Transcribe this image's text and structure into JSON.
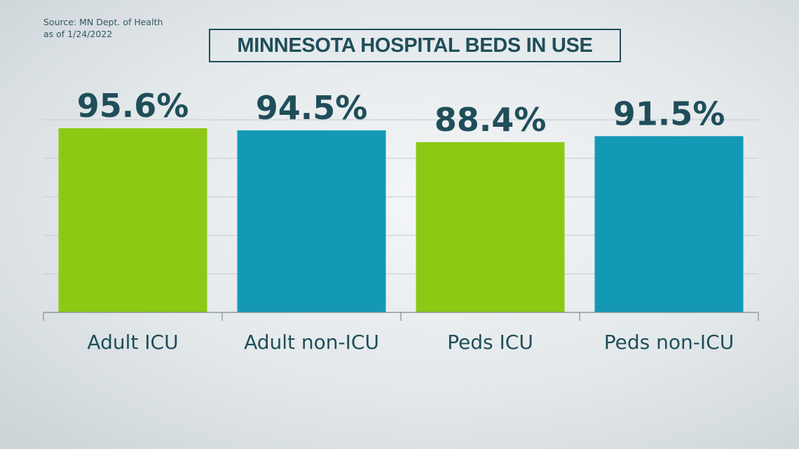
{
  "source": {
    "line1": "Source: MN Dept. of Health",
    "line2": "as of 1/24/2022"
  },
  "chart_data": {
    "type": "bar",
    "title": "MINNESOTA HOSPITAL BEDS IN USE",
    "categories": [
      "Adult ICU",
      "Adult non-ICU",
      "Peds ICU",
      "Peds non-ICU"
    ],
    "values": [
      95.6,
      94.5,
      88.4,
      91.5
    ],
    "value_labels": [
      "95.6%",
      "94.5%",
      "88.4%",
      "91.5%"
    ],
    "colors": [
      "#8dc815",
      "#1399b6",
      "#8dc815",
      "#1399b6"
    ],
    "ylim": [
      0,
      100
    ],
    "grid": true,
    "xlabel": "",
    "ylabel": ""
  }
}
